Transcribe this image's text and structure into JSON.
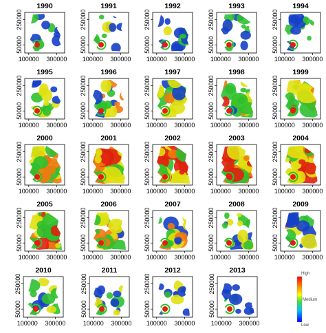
{
  "figure": {
    "years": [
      "1990",
      "1991",
      "1992",
      "1993",
      "1994",
      "1995",
      "1996",
      "1997",
      "1998",
      "1999",
      "2000",
      "2001",
      "2002",
      "2003",
      "2004",
      "2005",
      "2006",
      "2007",
      "2008",
      "2009",
      "2010",
      "2011",
      "2012",
      "2013"
    ],
    "intensity": [
      0.2,
      0.18,
      0.22,
      0.22,
      0.25,
      0.4,
      0.45,
      0.5,
      0.62,
      0.7,
      0.8,
      0.85,
      0.9,
      0.9,
      0.88,
      0.75,
      0.65,
      0.55,
      0.4,
      0.45,
      0.3,
      0.25,
      0.2,
      0.15
    ],
    "x_ticks": [
      "100000",
      "300000"
    ],
    "y_ticks": [
      "250000",
      "50000"
    ],
    "legend": {
      "high": "High",
      "medium": "Medium",
      "low": "Low"
    },
    "colors": {
      "high": "#ff0000",
      "medium": "#ffff00",
      "low": "#0000ff",
      "red": "#e02010",
      "orange": "#f07a10",
      "yellow": "#e0e010",
      "green": "#2fc030",
      "blue": "#1540c8",
      "frame": "#000000"
    }
  }
}
